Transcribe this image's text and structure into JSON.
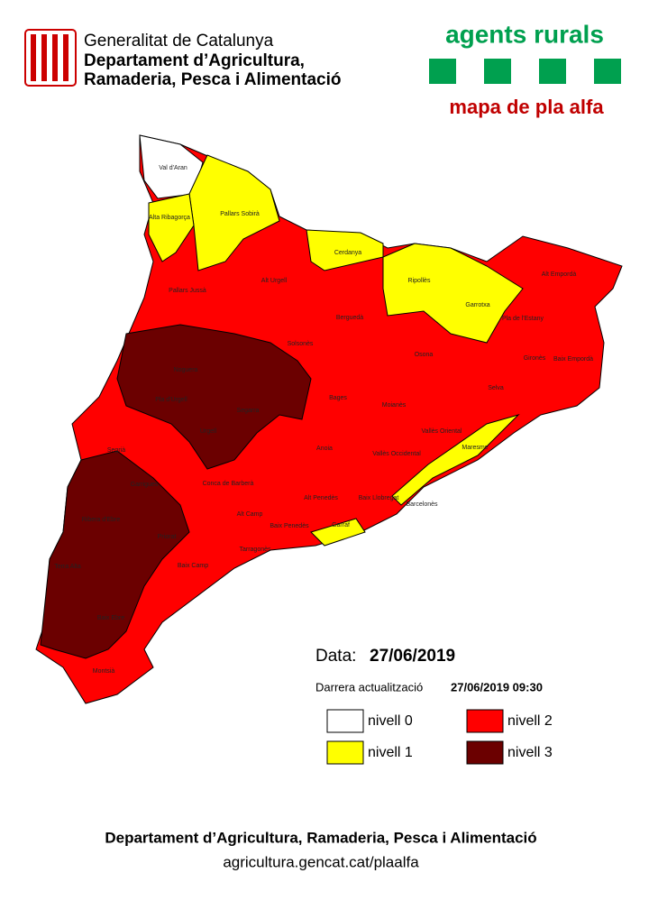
{
  "header": {
    "org": "Generalitat de Catalunya",
    "dept_line1": "Departament d’Agricultura,",
    "dept_line2": "Ramaderia, Pesca i Alimentació",
    "brand": "agents rurals",
    "map_title": "mapa de pla alfa"
  },
  "comarques": [
    "Val d'Aran",
    "Alta Ribagorça",
    "Pallars Sobirà",
    "Pallars Jussà",
    "Alt Urgell",
    "Cerdanya",
    "Ripollès",
    "Garrotxa",
    "Alt Empordà",
    "Pla de l'Estany",
    "Berguedà",
    "Solsonès",
    "Noguera",
    "Osona",
    "Gironès",
    "Baix Empordà",
    "Selva",
    "Bages",
    "Moianès",
    "Segarra",
    "Pla d'Urgell",
    "Urgell",
    "Segrià",
    "Anoia",
    "Vallès Oriental",
    "Vallès Occidental",
    "Maresme",
    "Garrigues",
    "Conca de Barberà",
    "Alt Penedès",
    "Baix Llobregat",
    "Barcelonès",
    "Ribera d'Ebre",
    "Priorat",
    "Alt Camp",
    "Baix Penedès",
    "Garraf",
    "Tarragonès",
    "Baix Camp",
    "Terra Alta",
    "Baix Ebre",
    "Montsià"
  ],
  "date": {
    "label": "Data:",
    "value": "27/06/2019"
  },
  "update": {
    "label": "Darrera actualització",
    "value": "27/06/2019 09:30"
  },
  "legend": [
    {
      "label": "nivell 0",
      "color": "#ffffff"
    },
    {
      "label": "nivell 1",
      "color": "#ffff00"
    },
    {
      "label": "nivell 2",
      "color": "#ff0000"
    },
    {
      "label": "nivell 3",
      "color": "#6b0000"
    }
  ],
  "footer": {
    "line1": "Departament d’Agricultura, Ramaderia, Pesca i Alimentació",
    "line2": "agricultura.gencat.cat/plaalfa"
  }
}
